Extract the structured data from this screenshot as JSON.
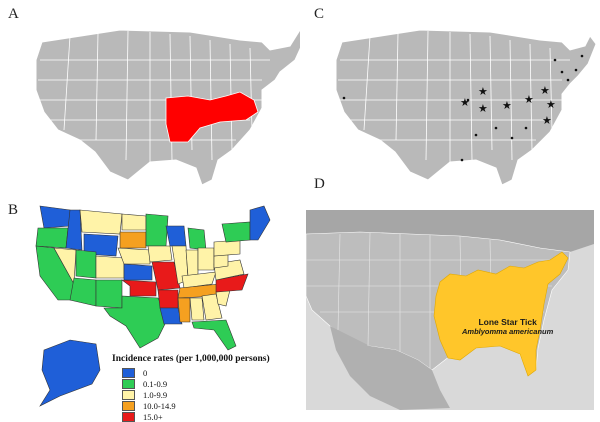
{
  "panels": {
    "a": {
      "letter": "A"
    },
    "b": {
      "letter": "B"
    },
    "c": {
      "letter": "C"
    },
    "d": {
      "letter": "D"
    }
  },
  "legend": {
    "title": "Incidence rates (per 1,000,000 persons)",
    "items": [
      {
        "label": "0",
        "color": "#1f5fd8"
      },
      {
        "label": "0.1-0.9",
        "color": "#2ecc55"
      },
      {
        "label": "1.0-9.9",
        "color": "#fff3a8"
      },
      {
        "label": "10.0-14.9",
        "color": "#f5a020"
      },
      {
        "label": "15.0+",
        "color": "#e81a1a"
      }
    ]
  },
  "tick_map": {
    "common_name": "Lone Star Tick",
    "scientific_name": "Amblyomma americanum",
    "range_color": "#ffc62a"
  },
  "colors": {
    "state_gray": "#b9b9b9",
    "highlight_red": "#ff0000",
    "ocean": "#d9d9d9",
    "land_d": "#bdbdbd"
  }
}
